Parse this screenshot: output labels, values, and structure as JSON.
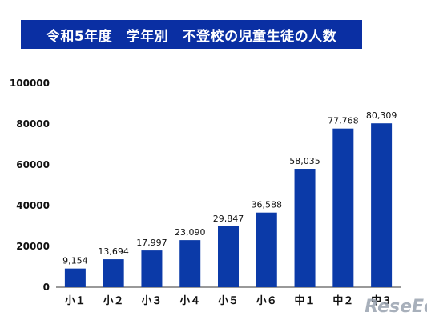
{
  "title": "令和5年度　学年別　不登校の児童生徒の人数",
  "watermark": "ReseEd",
  "colors": {
    "title_bg": "#0a2fa3",
    "bar": "#0b3aa8",
    "axis": "#333333",
    "watermark": "#9aa3b0"
  },
  "chart_data": {
    "type": "bar",
    "title": "令和5年度　学年別　不登校の児童生徒の人数",
    "categories": [
      "小１",
      "小２",
      "小３",
      "小４",
      "小５",
      "小６",
      "中１",
      "中２",
      "中３"
    ],
    "values": [
      9154,
      13694,
      17997,
      23090,
      29847,
      36588,
      58035,
      77768,
      80309
    ],
    "data_labels": [
      "9,154",
      "13,694",
      "17,997",
      "23,090",
      "29,847",
      "36,588",
      "58,035",
      "77,768",
      "80,309"
    ],
    "y_ticks": [
      "0",
      "20000",
      "40000",
      "60000",
      "80000",
      "100000"
    ],
    "ylim": [
      0,
      100000
    ],
    "grid": false,
    "legend": "none"
  }
}
